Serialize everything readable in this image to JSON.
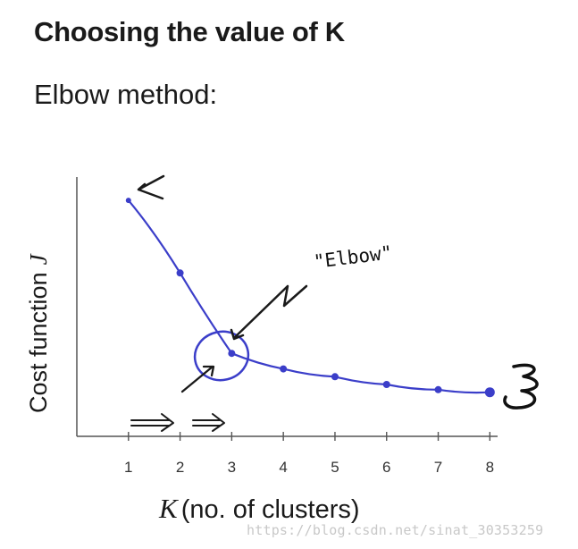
{
  "slide": {
    "title": "Choosing the value of K",
    "subtitle": "Elbow method:"
  },
  "chart_data": {
    "type": "line",
    "xlabel_symbol": "K",
    "xlabel_text": "(no. of clusters)",
    "ylabel_text": "Cost function",
    "ylabel_symbol": "J",
    "x": [
      1,
      2,
      3,
      4,
      5,
      6,
      7,
      8
    ],
    "series": [
      {
        "values": [
          9.1,
          6.3,
          3.2,
          2.6,
          2.3,
          2.0,
          1.8,
          1.7
        ]
      }
    ],
    "xlim": [
      0,
      8.15
    ],
    "ylim": [
      0,
      10
    ],
    "grid": false,
    "annotations": {
      "elbow_label": "\"Elbow\""
    },
    "line_color": "#3b3ec9"
  },
  "watermark": "https://blog.csdn.net/sinat_30353259"
}
